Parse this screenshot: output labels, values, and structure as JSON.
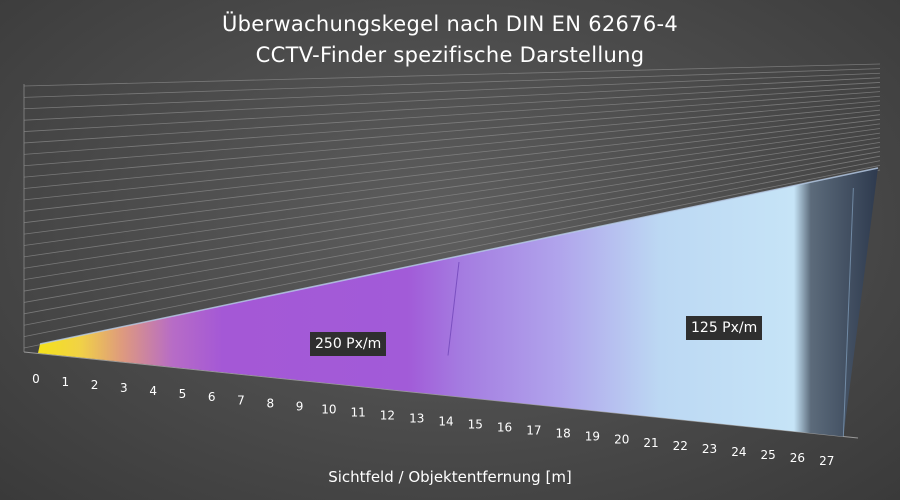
{
  "chart_data": {
    "type": "area",
    "title": "Überwachungskegel nach DIN EN 62676-4",
    "subtitle": "CCTV-Finder spezifische Darstellung",
    "xlabel": "Sichtfeld / Objektentfernung [m]",
    "ylabel": "",
    "x_ticks": [
      "0",
      "1",
      "2",
      "3",
      "4",
      "5",
      "6",
      "7",
      "8",
      "9",
      "10",
      "11",
      "12",
      "13",
      "14",
      "15",
      "16",
      "17",
      "18",
      "19",
      "20",
      "21",
      "22",
      "23",
      "24",
      "25",
      "26",
      "27"
    ],
    "xlim": [
      0,
      28
    ],
    "grid": true,
    "zones": [
      {
        "label": "250 Px/m",
        "x_start": 0,
        "x_end": 14
      },
      {
        "label": "125 Px/m",
        "x_start": 14,
        "x_end": 27.5
      }
    ]
  }
}
